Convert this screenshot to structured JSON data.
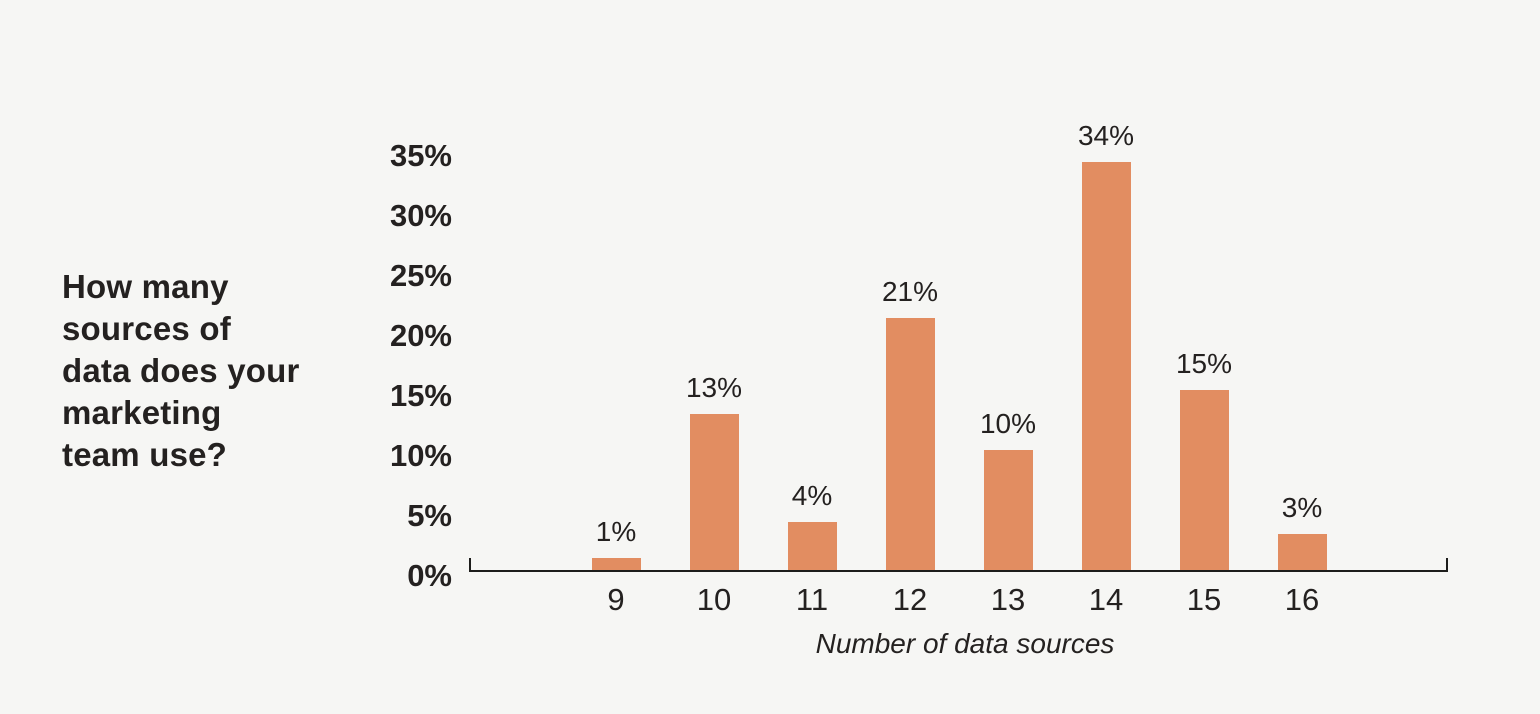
{
  "page": {
    "background_color": "#f6f6f4",
    "text_color": "#242120",
    "axis_color": "#1d1d1b"
  },
  "chart_data": {
    "type": "bar",
    "title": "How many sources of data does your marketing team use?",
    "title_display": "How many\nsources of\ndata does your\nmarketing\nteam use?",
    "categories": [
      "9",
      "10",
      "11",
      "12",
      "13",
      "14",
      "15",
      "16"
    ],
    "values": [
      1,
      13,
      4,
      21,
      10,
      34,
      15,
      3
    ],
    "value_labels": [
      "1%",
      "13%",
      "4%",
      "21%",
      "10%",
      "34%",
      "15%",
      "3%"
    ],
    "xlabel": "Number of data sources",
    "ylabel": "",
    "ylim": [
      0,
      35
    ],
    "ytick_step": 5,
    "ytick_labels": [
      "0%",
      "5%",
      "10%",
      "15%",
      "20%",
      "25%",
      "30%",
      "35%"
    ],
    "bar_color": "#e28d61",
    "grid": false,
    "legend": null
  }
}
